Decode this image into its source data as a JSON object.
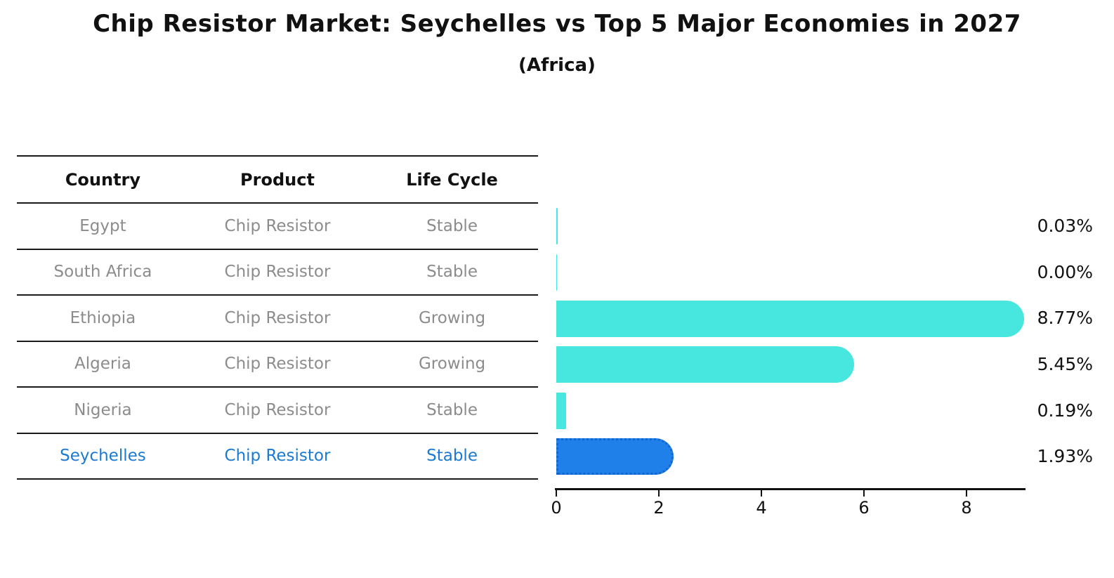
{
  "title": "Chip Resistor Market: Seychelles vs Top 5 Major Economies in 2027",
  "subtitle": "(Africa)",
  "table": {
    "headers": [
      "Country",
      "Product",
      "Life Cycle"
    ],
    "rows": [
      {
        "country": "Egypt",
        "product": "Chip Resistor",
        "life_cycle": "Stable",
        "highlighted": false
      },
      {
        "country": "South Africa",
        "product": "Chip Resistor",
        "life_cycle": "Stable",
        "highlighted": false
      },
      {
        "country": "Ethiopia",
        "product": "Chip Resistor",
        "life_cycle": "Growing",
        "highlighted": false
      },
      {
        "country": "Algeria",
        "product": "Chip Resistor",
        "life_cycle": "Growing",
        "highlighted": false
      },
      {
        "country": "Nigeria",
        "product": "Chip Resistor",
        "life_cycle": "Stable",
        "highlighted": false
      },
      {
        "country": "Seychelles",
        "product": "Chip Resistor",
        "life_cycle": "Stable",
        "highlighted": true
      }
    ]
  },
  "chart_data": {
    "type": "bar",
    "orientation": "horizontal",
    "title": "Chip Resistor Market: Seychelles vs Top 5 Major Economies in 2027",
    "subtitle": "(Africa)",
    "categories": [
      "Egypt",
      "South Africa",
      "Ethiopia",
      "Algeria",
      "Nigeria",
      "Seychelles"
    ],
    "values": [
      0.03,
      0.0,
      8.77,
      5.45,
      0.19,
      1.93
    ],
    "value_labels": [
      "0.03%",
      "0.00%",
      "8.77%",
      "5.45%",
      "0.19%",
      "1.93%"
    ],
    "x_ticks": [
      "0",
      "2",
      "4",
      "6",
      "8"
    ],
    "xlim": [
      0,
      9.2
    ],
    "grid": false,
    "legend": "none",
    "highlight_index": 5,
    "bar_color": "#47E7DF",
    "highlight_bar_color": "#1E80E8",
    "highlight_bar_edge_color": "#1565D0"
  },
  "colors": {
    "accent_text": "#1A7AD4",
    "table_text": "#8C8C8C",
    "heading_text": "#111111"
  }
}
